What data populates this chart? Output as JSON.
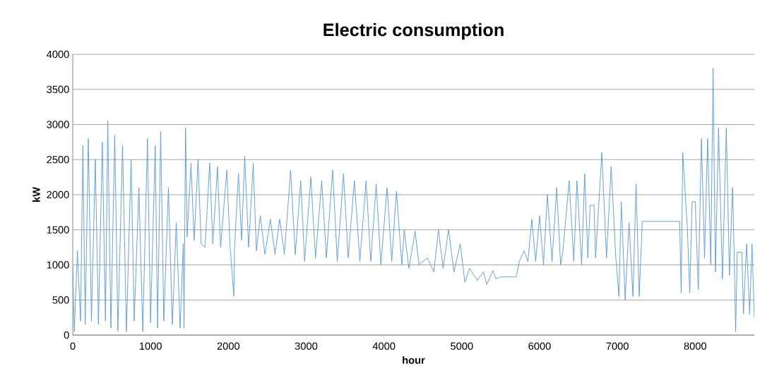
{
  "chart_data": {
    "type": "line",
    "title": "Electric consumption",
    "xlabel": "hour",
    "ylabel": "kW",
    "xlim": [
      0,
      8760
    ],
    "ylim": [
      0,
      4000
    ],
    "xticks": [
      0,
      1000,
      2000,
      3000,
      4000,
      5000,
      6000,
      7000,
      8000
    ],
    "yticks": [
      0,
      500,
      1000,
      1500,
      2000,
      2500,
      3000,
      3500,
      4000
    ],
    "grid": "y",
    "marker": "none",
    "line_style": "solid",
    "series": [
      {
        "color": "#5b9bd5",
        "x": [
          0,
          20,
          60,
          100,
          130,
          160,
          200,
          240,
          290,
          330,
          380,
          420,
          450,
          490,
          540,
          580,
          640,
          690,
          750,
          790,
          850,
          900,
          960,
          1000,
          1060,
          1090,
          1130,
          1170,
          1230,
          1280,
          1330,
          1380,
          1420,
          1430,
          1450,
          1470,
          1520,
          1560,
          1610,
          1650,
          1700,
          1760,
          1800,
          1860,
          1900,
          1980,
          2020,
          2070,
          2080,
          2130,
          2170,
          2210,
          2260,
          2320,
          2360,
          2410,
          2470,
          2540,
          2600,
          2660,
          2720,
          2800,
          2860,
          2930,
          2980,
          3060,
          3120,
          3200,
          3260,
          3340,
          3400,
          3480,
          3540,
          3620,
          3690,
          3770,
          3830,
          3900,
          3960,
          4040,
          4100,
          4160,
          4230,
          4260,
          4320,
          4400,
          4450,
          4500,
          4560,
          4640,
          4700,
          4760,
          4830,
          4900,
          4980,
          5040,
          5100,
          5200,
          5280,
          5320,
          5400,
          5440,
          5500,
          5700,
          5740,
          5800,
          5850,
          5900,
          5950,
          6000,
          6050,
          6100,
          6160,
          6220,
          6270,
          6300,
          6380,
          6440,
          6480,
          6540,
          6580,
          6620,
          6650,
          6700,
          6720,
          6800,
          6860,
          6920,
          6980,
          7020,
          7050,
          7100,
          7150,
          7200,
          7240,
          7280,
          7320,
          7800,
          7820,
          7840,
          7900,
          7930,
          7960,
          8000,
          8040,
          8080,
          8120,
          8160,
          8200,
          8230,
          8260,
          8300,
          8350,
          8400,
          8440,
          8480,
          8500,
          8520,
          8540,
          8600,
          8620,
          8660,
          8700,
          8730,
          8760
        ],
        "values": [
          1000,
          50,
          1200,
          200,
          2700,
          150,
          2800,
          200,
          2500,
          150,
          2750,
          200,
          3050,
          100,
          2850,
          60,
          2700,
          50,
          2500,
          200,
          2100,
          50,
          2800,
          180,
          2700,
          100,
          2900,
          200,
          2100,
          150,
          1600,
          100,
          1300,
          100,
          2950,
          1400,
          2450,
          1350,
          2500,
          1300,
          1250,
          2450,
          1300,
          2400,
          1250,
          2350,
          1300,
          550,
          1250,
          2300,
          1350,
          2550,
          1250,
          2450,
          1200,
          1700,
          1150,
          1650,
          1150,
          1650,
          1150,
          2350,
          1150,
          2200,
          1050,
          2250,
          1100,
          2200,
          1100,
          2350,
          1050,
          2300,
          1100,
          2200,
          1050,
          2200,
          1050,
          2150,
          1000,
          2100,
          1050,
          2050,
          1000,
          1500,
          950,
          1480,
          1000,
          1050,
          1100,
          900,
          1500,
          950,
          1500,
          900,
          1300,
          750,
          950,
          780,
          900,
          720,
          920,
          800,
          830,
          830,
          1050,
          1200,
          1050,
          1650,
          1050,
          1700,
          1000,
          2000,
          1050,
          2100,
          1000,
          1200,
          2200,
          1050,
          2200,
          1000,
          2300,
          1100,
          1850,
          1850,
          1100,
          2600,
          1100,
          2400,
          1100,
          550,
          1900,
          500,
          1600,
          550,
          2150,
          550,
          1620,
          1620,
          600,
          2600,
          1500,
          600,
          1900,
          1900,
          650,
          2800,
          1100,
          2800,
          1000,
          3800,
          900,
          2950,
          800,
          2950,
          850,
          2100,
          1200,
          50,
          1180,
          1180,
          300,
          1300,
          300,
          1300,
          250
        ]
      }
    ]
  }
}
